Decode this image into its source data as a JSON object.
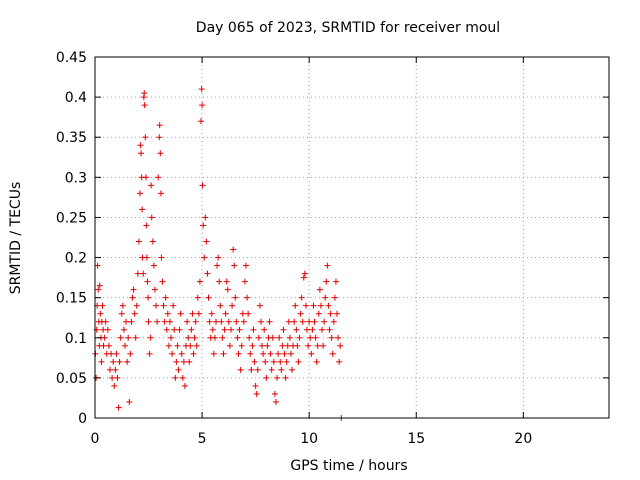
{
  "chart_data": {
    "type": "scatter",
    "title": "Day 065 of 2023, SRMTID for receiver moul",
    "xlabel": "GPS time / hours",
    "ylabel": "SRMTID / TECUs",
    "xlim": [
      0,
      24
    ],
    "ylim": [
      0,
      0.45
    ],
    "xticks": [
      "0",
      "5",
      "10",
      "15",
      "20"
    ],
    "yticks": [
      "0",
      "0.05",
      "0.1",
      "0.15",
      "0.2",
      "0.25",
      "0.3",
      "0.35",
      "0.4",
      "0.45"
    ],
    "grid": true,
    "marker": "plus",
    "color": "#e00000",
    "series": [
      {
        "name": "SRMTID",
        "points": [
          [
            0.02,
            0.08
          ],
          [
            0.05,
            0.05
          ],
          [
            0.08,
            0.11
          ],
          [
            0.1,
            0.14
          ],
          [
            0.12,
            0.19
          ],
          [
            0.15,
            0.16
          ],
          [
            0.18,
            0.12
          ],
          [
            0.2,
            0.09
          ],
          [
            0.22,
            0.165
          ],
          [
            0.25,
            0.13
          ],
          [
            0.28,
            0.1
          ],
          [
            0.3,
            0.07
          ],
          [
            0.32,
            0.12
          ],
          [
            0.35,
            0.14
          ],
          [
            0.38,
            0.11
          ],
          [
            0.4,
            0.09
          ],
          [
            0.45,
            0.1
          ],
          [
            0.5,
            0.12
          ],
          [
            0.55,
            0.08
          ],
          [
            0.6,
            0.11
          ],
          [
            0.65,
            0.09
          ],
          [
            0.7,
            0.06
          ],
          [
            0.75,
            0.08
          ],
          [
            0.8,
            0.05
          ],
          [
            0.85,
            0.07
          ],
          [
            0.9,
            0.04
          ],
          [
            0.95,
            0.06
          ],
          [
            1.0,
            0.08
          ],
          [
            1.05,
            0.05
          ],
          [
            1.1,
            0.013
          ],
          [
            1.15,
            0.07
          ],
          [
            1.2,
            0.1
          ],
          [
            1.25,
            0.13
          ],
          [
            1.3,
            0.14
          ],
          [
            1.35,
            0.11
          ],
          [
            1.4,
            0.09
          ],
          [
            1.45,
            0.12
          ],
          [
            1.5,
            0.07
          ],
          [
            1.55,
            0.1
          ],
          [
            1.6,
            0.02
          ],
          [
            1.65,
            0.08
          ],
          [
            1.7,
            0.12
          ],
          [
            1.75,
            0.15
          ],
          [
            1.8,
            0.16
          ],
          [
            1.85,
            0.13
          ],
          [
            1.9,
            0.1
          ],
          [
            1.95,
            0.14
          ],
          [
            2.0,
            0.18
          ],
          [
            2.05,
            0.22
          ],
          [
            2.1,
            0.28
          ],
          [
            2.12,
            0.34
          ],
          [
            2.15,
            0.33
          ],
          [
            2.18,
            0.3
          ],
          [
            2.2,
            0.26
          ],
          [
            2.22,
            0.2
          ],
          [
            2.25,
            0.18
          ],
          [
            2.28,
            0.4
          ],
          [
            2.3,
            0.405
          ],
          [
            2.32,
            0.39
          ],
          [
            2.35,
            0.35
          ],
          [
            2.38,
            0.3
          ],
          [
            2.4,
            0.24
          ],
          [
            2.42,
            0.2
          ],
          [
            2.45,
            0.17
          ],
          [
            2.48,
            0.15
          ],
          [
            2.5,
            0.12
          ],
          [
            2.55,
            0.08
          ],
          [
            2.6,
            0.1
          ],
          [
            2.62,
            0.29
          ],
          [
            2.65,
            0.25
          ],
          [
            2.7,
            0.22
          ],
          [
            2.75,
            0.19
          ],
          [
            2.8,
            0.16
          ],
          [
            2.85,
            0.14
          ],
          [
            2.9,
            0.12
          ],
          [
            2.95,
            0.3
          ],
          [
            3.0,
            0.35
          ],
          [
            3.02,
            0.365
          ],
          [
            3.05,
            0.33
          ],
          [
            3.08,
            0.28
          ],
          [
            3.1,
            0.2
          ],
          [
            3.15,
            0.17
          ],
          [
            3.2,
            0.14
          ],
          [
            3.25,
            0.12
          ],
          [
            3.3,
            0.15
          ],
          [
            3.35,
            0.11
          ],
          [
            3.4,
            0.13
          ],
          [
            3.45,
            0.09
          ],
          [
            3.5,
            0.12
          ],
          [
            3.55,
            0.1
          ],
          [
            3.6,
            0.08
          ],
          [
            3.65,
            0.14
          ],
          [
            3.7,
            0.11
          ],
          [
            3.75,
            0.05
          ],
          [
            3.8,
            0.07
          ],
          [
            3.85,
            0.09
          ],
          [
            3.9,
            0.06
          ],
          [
            3.95,
            0.11
          ],
          [
            4.0,
            0.13
          ],
          [
            4.05,
            0.08
          ],
          [
            4.1,
            0.05
          ],
          [
            4.15,
            0.07
          ],
          [
            4.2,
            0.04
          ],
          [
            4.25,
            0.09
          ],
          [
            4.3,
            0.12
          ],
          [
            4.35,
            0.1
          ],
          [
            4.4,
            0.07
          ],
          [
            4.45,
            0.09
          ],
          [
            4.5,
            0.11
          ],
          [
            4.55,
            0.13
          ],
          [
            4.6,
            0.08
          ],
          [
            4.65,
            0.1
          ],
          [
            4.7,
            0.12
          ],
          [
            4.75,
            0.09
          ],
          [
            4.8,
            0.15
          ],
          [
            4.85,
            0.13
          ],
          [
            4.9,
            0.17
          ],
          [
            4.95,
            0.37
          ],
          [
            4.98,
            0.41
          ],
          [
            5.0,
            0.39
          ],
          [
            5.02,
            0.29
          ],
          [
            5.05,
            0.24
          ],
          [
            5.1,
            0.2
          ],
          [
            5.15,
            0.25
          ],
          [
            5.2,
            0.22
          ],
          [
            5.25,
            0.18
          ],
          [
            5.3,
            0.15
          ],
          [
            5.35,
            0.12
          ],
          [
            5.4,
            0.1
          ],
          [
            5.45,
            0.13
          ],
          [
            5.5,
            0.11
          ],
          [
            5.55,
            0.08
          ],
          [
            5.6,
            0.1
          ],
          [
            5.65,
            0.12
          ],
          [
            5.7,
            0.19
          ],
          [
            5.75,
            0.2
          ],
          [
            5.8,
            0.17
          ],
          [
            5.85,
            0.14
          ],
          [
            5.9,
            0.12
          ],
          [
            5.95,
            0.1
          ],
          [
            6.0,
            0.08
          ],
          [
            6.05,
            0.11
          ],
          [
            6.1,
            0.13
          ],
          [
            6.15,
            0.17
          ],
          [
            6.2,
            0.16
          ],
          [
            6.25,
            0.12
          ],
          [
            6.3,
            0.09
          ],
          [
            6.35,
            0.11
          ],
          [
            6.4,
            0.14
          ],
          [
            6.45,
            0.21
          ],
          [
            6.5,
            0.19
          ],
          [
            6.55,
            0.15
          ],
          [
            6.6,
            0.12
          ],
          [
            6.65,
            0.1
          ],
          [
            6.7,
            0.08
          ],
          [
            6.75,
            0.11
          ],
          [
            6.8,
            0.06
          ],
          [
            6.85,
            0.09
          ],
          [
            6.9,
            0.13
          ],
          [
            6.95,
            0.12
          ],
          [
            7.0,
            0.17
          ],
          [
            7.05,
            0.19
          ],
          [
            7.1,
            0.15
          ],
          [
            7.15,
            0.13
          ],
          [
            7.2,
            0.1
          ],
          [
            7.25,
            0.08
          ],
          [
            7.3,
            0.06
          ],
          [
            7.35,
            0.09
          ],
          [
            7.4,
            0.11
          ],
          [
            7.45,
            0.07
          ],
          [
            7.5,
            0.04
          ],
          [
            7.55,
            0.03
          ],
          [
            7.6,
            0.06
          ],
          [
            7.65,
            0.1
          ],
          [
            7.7,
            0.14
          ],
          [
            7.75,
            0.12
          ],
          [
            7.8,
            0.09
          ],
          [
            7.85,
            0.08
          ],
          [
            7.9,
            0.11
          ],
          [
            7.95,
            0.07
          ],
          [
            8.0,
            0.05
          ],
          [
            8.05,
            0.09
          ],
          [
            8.1,
            0.1
          ],
          [
            8.15,
            0.12
          ],
          [
            8.2,
            0.08
          ],
          [
            8.25,
            0.06
          ],
          [
            8.3,
            0.1
          ],
          [
            8.35,
            0.07
          ],
          [
            8.4,
            0.03
          ],
          [
            8.45,
            0.02
          ],
          [
            8.5,
            0.05
          ],
          [
            8.55,
            0.08
          ],
          [
            8.6,
            0.1
          ],
          [
            8.65,
            0.07
          ],
          [
            8.7,
            0.06
          ],
          [
            8.75,
            0.09
          ],
          [
            8.8,
            0.11
          ],
          [
            8.85,
            0.08
          ],
          [
            8.9,
            0.05
          ],
          [
            8.95,
            0.07
          ],
          [
            9.0,
            0.09
          ],
          [
            9.05,
            0.12
          ],
          [
            9.1,
            0.1
          ],
          [
            9.15,
            0.08
          ],
          [
            9.2,
            0.06
          ],
          [
            9.25,
            0.09
          ],
          [
            9.3,
            0.12
          ],
          [
            9.35,
            0.14
          ],
          [
            9.4,
            0.11
          ],
          [
            9.45,
            0.09
          ],
          [
            9.5,
            0.07
          ],
          [
            9.55,
            0.1
          ],
          [
            9.6,
            0.13
          ],
          [
            9.65,
            0.15
          ],
          [
            9.7,
            0.12
          ],
          [
            9.75,
            0.175
          ],
          [
            9.8,
            0.18
          ],
          [
            9.85,
            0.14
          ],
          [
            9.9,
            0.11
          ],
          [
            9.95,
            0.09
          ],
          [
            10.0,
            0.12
          ],
          [
            10.05,
            0.1
          ],
          [
            10.1,
            0.08
          ],
          [
            10.15,
            0.11
          ],
          [
            10.2,
            0.14
          ],
          [
            10.25,
            0.12
          ],
          [
            10.3,
            0.1
          ],
          [
            10.35,
            0.07
          ],
          [
            10.4,
            0.09
          ],
          [
            10.45,
            0.13
          ],
          [
            10.5,
            0.16
          ],
          [
            10.55,
            0.14
          ],
          [
            10.6,
            0.11
          ],
          [
            10.65,
            0.09
          ],
          [
            10.7,
            0.12
          ],
          [
            10.75,
            0.15
          ],
          [
            10.8,
            0.17
          ],
          [
            10.85,
            0.19
          ],
          [
            10.9,
            0.14
          ],
          [
            10.95,
            0.11
          ],
          [
            11.0,
            0.13
          ],
          [
            11.05,
            0.1
          ],
          [
            11.1,
            0.08
          ],
          [
            11.15,
            0.12
          ],
          [
            11.2,
            0.15
          ],
          [
            11.25,
            0.17
          ],
          [
            11.3,
            0.13
          ],
          [
            11.35,
            0.1
          ],
          [
            11.4,
            0.07
          ],
          [
            11.45,
            0.09
          ],
          [
            11.5,
            0.0
          ]
        ]
      }
    ]
  }
}
